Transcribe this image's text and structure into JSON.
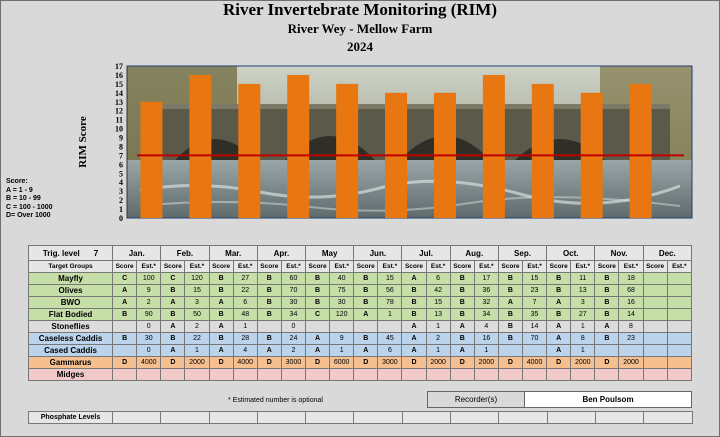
{
  "title": "River  Invertebrate Monitoring (RIM)",
  "subtitle": "River Wey - Mellow Farm",
  "year": "2024",
  "chart_data": {
    "type": "bar",
    "title": "River  Invertebrate Monitoring (RIM)",
    "ylabel": "RIM Score",
    "xlabel": "",
    "categories": [
      "Jan.",
      "Feb.",
      "Mar.",
      "Apr.",
      "May",
      "Jun.",
      "Jul.",
      "Aug.",
      "Sep.",
      "Oct.",
      "Nov."
    ],
    "values": [
      13,
      16,
      15,
      16,
      15,
      14,
      14,
      16,
      15,
      14,
      15
    ],
    "ylim": [
      0,
      17
    ],
    "yticks": [
      "0",
      "1",
      "2",
      "3",
      "4",
      "5",
      "6",
      "7",
      "8",
      "9",
      "10",
      "11",
      "12",
      "13",
      "14",
      "15",
      "16",
      "17"
    ],
    "target_line": 7,
    "bar_color": "#e87711",
    "line_color": "#c00000",
    "grid": false,
    "background": "photo of a river under a stone bridge"
  },
  "score_legend": [
    "Score:",
    "A = 1 - 9",
    "B = 10 - 99",
    "C = 100 - 1000",
    "D=  Over 1000"
  ],
  "table": {
    "trig_label": "Trig. level",
    "trig_value": "7",
    "groups_label": "Target Groups",
    "months": [
      "Jan.",
      "Feb.",
      "Mar.",
      "Apr.",
      "May",
      "Jun.",
      "Jul.",
      "Aug.",
      "Sep.",
      "Oct.",
      "Nov.",
      "Dec."
    ],
    "score_label": "Score",
    "est_label": "Est.*",
    "rows": [
      {
        "name": "Mayfly",
        "color": "g",
        "cells": [
          [
            "C",
            "100"
          ],
          [
            "C",
            "120"
          ],
          [
            "B",
            "27"
          ],
          [
            "B",
            "60"
          ],
          [
            "B",
            "40"
          ],
          [
            "B",
            "15"
          ],
          [
            "A",
            "6"
          ],
          [
            "B",
            "17"
          ],
          [
            "B",
            "15"
          ],
          [
            "B",
            "11"
          ],
          [
            "B",
            "18"
          ],
          [
            "",
            ""
          ]
        ]
      },
      {
        "name": "Olives",
        "color": "g",
        "cells": [
          [
            "A",
            "9"
          ],
          [
            "B",
            "15"
          ],
          [
            "B",
            "22"
          ],
          [
            "B",
            "70"
          ],
          [
            "B",
            "75"
          ],
          [
            "B",
            "56"
          ],
          [
            "B",
            "42"
          ],
          [
            "B",
            "36"
          ],
          [
            "B",
            "23"
          ],
          [
            "B",
            "13"
          ],
          [
            "B",
            "68"
          ],
          [
            "",
            ""
          ]
        ]
      },
      {
        "name": "BWO",
        "color": "g",
        "cells": [
          [
            "A",
            "2"
          ],
          [
            "A",
            "3"
          ],
          [
            "A",
            "6"
          ],
          [
            "B",
            "30"
          ],
          [
            "B",
            "30"
          ],
          [
            "B",
            "78"
          ],
          [
            "B",
            "15"
          ],
          [
            "B",
            "32"
          ],
          [
            "A",
            "7"
          ],
          [
            "A",
            "3"
          ],
          [
            "B",
            "16"
          ],
          [
            "",
            ""
          ]
        ]
      },
      {
        "name": "Flat Bodied",
        "color": "g",
        "cells": [
          [
            "B",
            "90"
          ],
          [
            "B",
            "50"
          ],
          [
            "B",
            "48"
          ],
          [
            "B",
            "34"
          ],
          [
            "C",
            "120"
          ],
          [
            "A",
            "1"
          ],
          [
            "B",
            "13"
          ],
          [
            "B",
            "34"
          ],
          [
            "B",
            "35"
          ],
          [
            "B",
            "27"
          ],
          [
            "B",
            "14"
          ],
          [
            "",
            ""
          ]
        ]
      },
      {
        "name": "Stoneflies",
        "color": "w",
        "cells": [
          [
            "",
            "0"
          ],
          [
            "A",
            "2"
          ],
          [
            "A",
            "1"
          ],
          [
            "",
            "0"
          ],
          [
            "",
            ""
          ],
          [
            "",
            ""
          ],
          [
            "A",
            "1"
          ],
          [
            "A",
            "4"
          ],
          [
            "B",
            "14"
          ],
          [
            "A",
            "1"
          ],
          [
            "A",
            "8"
          ],
          [
            "",
            ""
          ]
        ]
      },
      {
        "name": "Caseless Caddis",
        "color": "b",
        "cells": [
          [
            "B",
            "30"
          ],
          [
            "B",
            "22"
          ],
          [
            "B",
            "28"
          ],
          [
            "B",
            "24"
          ],
          [
            "A",
            "9"
          ],
          [
            "B",
            "45"
          ],
          [
            "A",
            "2"
          ],
          [
            "B",
            "16"
          ],
          [
            "B",
            "70"
          ],
          [
            "A",
            "8"
          ],
          [
            "B",
            "23"
          ],
          [
            "",
            ""
          ]
        ]
      },
      {
        "name": "Cased Caddis",
        "color": "b",
        "cells": [
          [
            "",
            "0"
          ],
          [
            "A",
            "1"
          ],
          [
            "A",
            "4"
          ],
          [
            "A",
            "2"
          ],
          [
            "A",
            "1"
          ],
          [
            "A",
            "6"
          ],
          [
            "A",
            "1"
          ],
          [
            "A",
            "1"
          ],
          [
            "",
            ""
          ],
          [
            "A",
            "1"
          ],
          [
            "",
            ""
          ],
          [
            "",
            ""
          ]
        ]
      },
      {
        "name": "Gammarus",
        "color": "o",
        "cells": [
          [
            "D",
            "4000"
          ],
          [
            "D",
            "2000"
          ],
          [
            "D",
            "4000"
          ],
          [
            "D",
            "3000"
          ],
          [
            "D",
            "6000"
          ],
          [
            "D",
            "3000"
          ],
          [
            "D",
            "2000"
          ],
          [
            "D",
            "2000"
          ],
          [
            "D",
            "4000"
          ],
          [
            "D",
            "2000"
          ],
          [
            "D",
            "2000"
          ],
          [
            "",
            ""
          ]
        ]
      },
      {
        "name": "Midges",
        "color": "p",
        "cells": [
          [
            "",
            ""
          ],
          [
            "",
            ""
          ],
          [
            "",
            ""
          ],
          [
            "",
            ""
          ],
          [
            "",
            ""
          ],
          [
            "",
            ""
          ],
          [
            "",
            ""
          ],
          [
            "",
            ""
          ],
          [
            "",
            ""
          ],
          [
            "",
            ""
          ],
          [
            "",
            ""
          ],
          [
            "",
            ""
          ]
        ]
      }
    ]
  },
  "note": "* Estimated number is optional",
  "recorder_label": "Recorder(s)",
  "recorder_name": "Ben Poulsom",
  "phosphate_label": "Phosphate Levels"
}
